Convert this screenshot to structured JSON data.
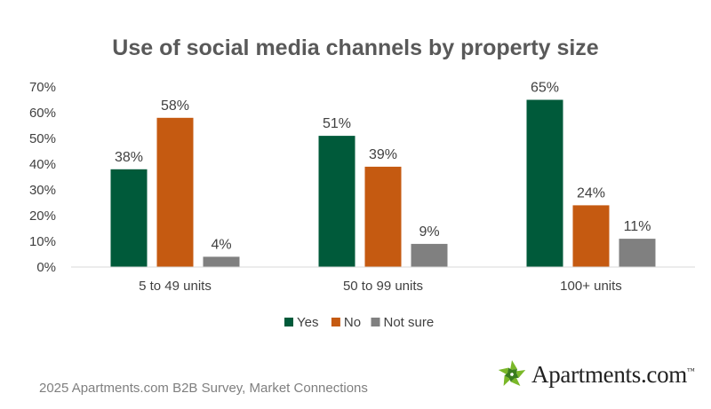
{
  "chart_data": {
    "type": "bar",
    "title": "Use of social media channels by property size",
    "categories": [
      "5 to 49 units",
      "50 to 99 units",
      "100+ units"
    ],
    "series": [
      {
        "name": "Yes",
        "color": "#005a3a",
        "values": [
          38,
          51,
          65
        ],
        "labels": [
          "38%",
          "51%",
          "65%"
        ]
      },
      {
        "name": "No",
        "color": "#c55a11",
        "values": [
          58,
          39,
          24
        ],
        "labels": [
          "58%",
          "39%",
          "24%"
        ]
      },
      {
        "name": "Not sure",
        "color": "#808080",
        "values": [
          4,
          9,
          11
        ],
        "labels": [
          "4%",
          "9%",
          "11%"
        ]
      }
    ],
    "ylim": [
      0,
      70
    ],
    "yticks": [
      "0%",
      "10%",
      "20%",
      "30%",
      "40%",
      "50%",
      "60%",
      "70%"
    ],
    "grid": false,
    "legend_position": "bottom"
  },
  "footer": {
    "source": "2025 Apartments.com B2B Survey, Market Connections",
    "brand_logo": "Apartments.com"
  },
  "colors": {
    "axis": "#d9d9d9",
    "text": "#404040",
    "logo_green": "#7ab829"
  }
}
